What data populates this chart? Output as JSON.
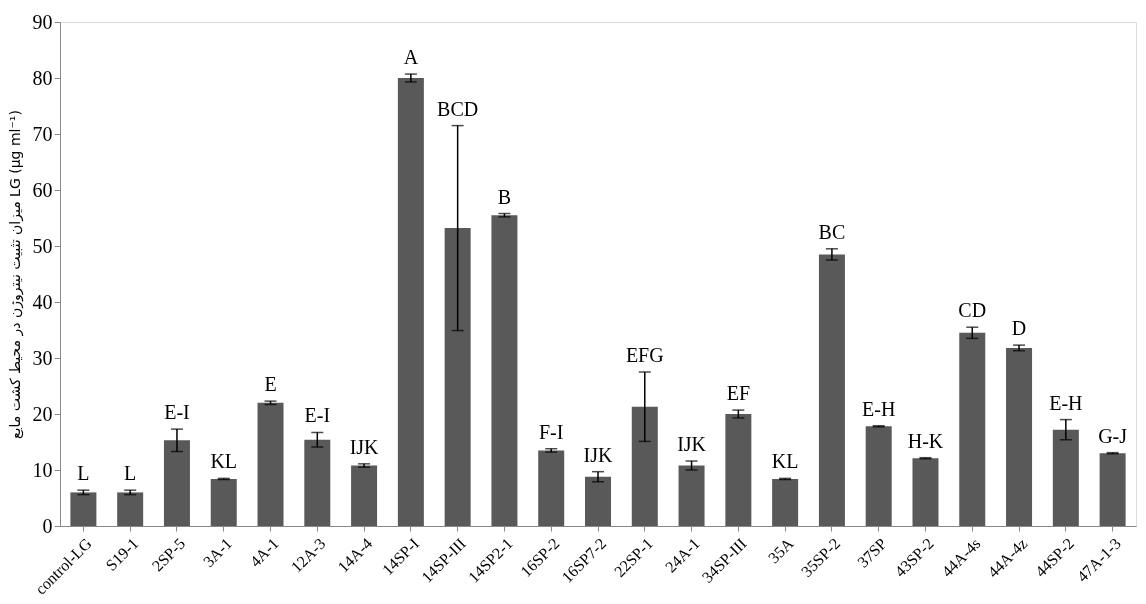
{
  "chart_data": {
    "type": "bar",
    "ylabel": "میزان تثبیت نیتروژن در محیط کشت مایع LG (µg ml⁻¹)",
    "categories": [
      "control-LG",
      "S19-1",
      "2SP-5",
      "3A-1",
      "4A-1",
      "12A-3",
      "14A-4",
      "14SP-I",
      "14SP-III",
      "14SP2-1",
      "16SP-2",
      "16SP7-2",
      "22SP-1",
      "24A-1",
      "34SP-III",
      "35A",
      "35SP-2",
      "37SP",
      "43SP-2",
      "44A-4s",
      "44A-4z",
      "44SP-2",
      "47A-1-3"
    ],
    "values": [
      6,
      6,
      15.3,
      8.4,
      22,
      15.4,
      10.8,
      80,
      53.2,
      55.5,
      13.5,
      8.8,
      21.3,
      10.8,
      20,
      8.4,
      48.5,
      17.8,
      12.1,
      34.5,
      31.8,
      17.2,
      13
    ],
    "errors": [
      0.4,
      0.4,
      2,
      0.1,
      0.3,
      1.3,
      0.3,
      0.7,
      18.3,
      0.3,
      0.3,
      0.9,
      6.2,
      0.8,
      0.7,
      0.1,
      1,
      0.1,
      0.1,
      1,
      0.5,
      1.8,
      0.1
    ],
    "color": "#595959",
    "ylim": [
      0,
      90
    ],
    "yticks": [
      0,
      10,
      20,
      30,
      40,
      50,
      60,
      70,
      80,
      90
    ],
    "grid": false,
    "annotations": [
      {
        "text": "L",
        "x": "control-LG",
        "y": 6.4
      },
      {
        "text": "L",
        "x": "S19-1",
        "y": 6.4
      },
      {
        "text": "E-I",
        "x": "2SP-5",
        "y": 17.3
      },
      {
        "text": "KL",
        "x": "3A-1",
        "y": 8.5
      },
      {
        "text": "E",
        "x": "4A-1",
        "y": 22.3
      },
      {
        "text": "E-I",
        "x": "12A-3",
        "y": 16.7
      },
      {
        "text": "IJK",
        "x": "14A-4",
        "y": 11.1
      },
      {
        "text": "A",
        "x": "14SP-I",
        "y": 80.7
      },
      {
        "text": "BCD",
        "x": "14SP-III",
        "y": 71.5
      },
      {
        "text": "B",
        "x": "14SP2-1",
        "y": 55.8
      },
      {
        "text": "F-I",
        "x": "16SP-2",
        "y": 13.8
      },
      {
        "text": "IJK",
        "x": "16SP7-2",
        "y": 9.7
      },
      {
        "text": "EFG",
        "x": "22SP-1",
        "y": 27.5
      },
      {
        "text": "IJK",
        "x": "24A-1",
        "y": 11.6
      },
      {
        "text": "EF",
        "x": "34SP-III",
        "y": 20.7
      },
      {
        "text": "KL",
        "x": "35A",
        "y": 8.5
      },
      {
        "text": "BC",
        "x": "35SP-2",
        "y": 49.5
      },
      {
        "text": "E-H",
        "x": "37SP",
        "y": 17.9
      },
      {
        "text": "H-K",
        "x": "43SP-2",
        "y": 12.2
      },
      {
        "text": "CD",
        "x": "44A-4s",
        "y": 35.5
      },
      {
        "text": "D",
        "x": "44A-4z",
        "y": 32.3
      },
      {
        "text": "E-H",
        "x": "44SP-2",
        "y": 19
      },
      {
        "text": "G-J",
        "x": "47A-1-3",
        "y": 13.1
      }
    ]
  }
}
